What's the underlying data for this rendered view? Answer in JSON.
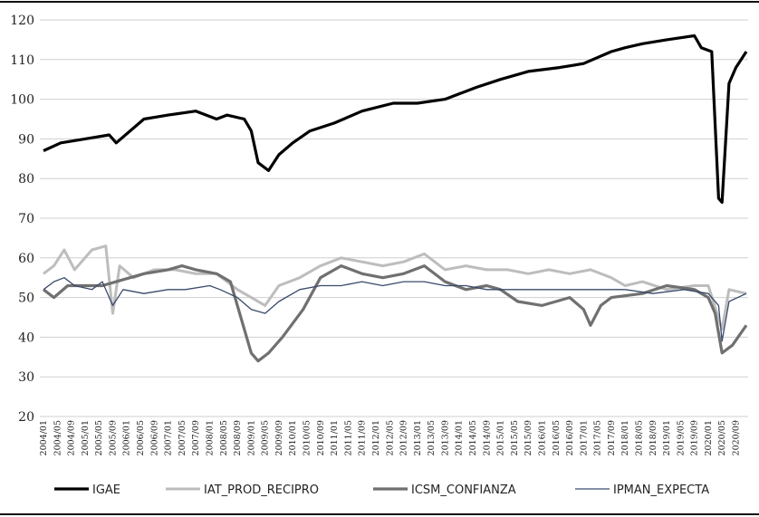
{
  "chart_data": {
    "type": "line",
    "title": "",
    "xlabel": "",
    "ylabel": "",
    "ylim": [
      20,
      120
    ],
    "yticks": [
      20,
      30,
      40,
      50,
      60,
      70,
      80,
      90,
      100,
      110,
      120
    ],
    "grid": "horizontal",
    "legend_position": "bottom",
    "x_start": "2004/01",
    "x_end": "2020/12",
    "x_tick_labels": [
      "2004/01",
      "2004/05",
      "2004/09",
      "2005/01",
      "2005/05",
      "2005/09",
      "2006/01",
      "2006/05",
      "2006/09",
      "2007/01",
      "2007/05",
      "2007/09",
      "2008/01",
      "2008/05",
      "2008/09",
      "2009/01",
      "2009/05",
      "2009/09",
      "2010/01",
      "2010/05",
      "2010/09",
      "2011/01",
      "2011/05",
      "2011/09",
      "2012/01",
      "2012/05",
      "2012/09",
      "2013/01",
      "2013/05",
      "2013/09",
      "2014/01",
      "2014/05",
      "2014/09",
      "2015/01",
      "2015/05",
      "2015/09",
      "2016/01",
      "2016/05",
      "2016/09",
      "2017/01",
      "2017/05",
      "2017/09",
      "2018/01",
      "2018/05",
      "2018/09",
      "2019/01",
      "2019/05",
      "2019/09",
      "2020/01",
      "2020/05",
      "2020/09"
    ],
    "series": [
      {
        "name": "IGAE",
        "color": "#000000",
        "points": [
          [
            "2004/01",
            87
          ],
          [
            "2004/06",
            89
          ],
          [
            "2005/01",
            90
          ],
          [
            "2005/08",
            91
          ],
          [
            "2005/10",
            89
          ],
          [
            "2006/06",
            95
          ],
          [
            "2007/01",
            96
          ],
          [
            "2007/09",
            97
          ],
          [
            "2008/03",
            95
          ],
          [
            "2008/06",
            96
          ],
          [
            "2008/11",
            95
          ],
          [
            "2009/01",
            92
          ],
          [
            "2009/03",
            84
          ],
          [
            "2009/06",
            82
          ],
          [
            "2009/09",
            86
          ],
          [
            "2010/01",
            89
          ],
          [
            "2010/06",
            92
          ],
          [
            "2011/01",
            94
          ],
          [
            "2011/09",
            97
          ],
          [
            "2012/06",
            99
          ],
          [
            "2013/01",
            99
          ],
          [
            "2013/09",
            100
          ],
          [
            "2014/06",
            103
          ],
          [
            "2015/01",
            105
          ],
          [
            "2015/09",
            107
          ],
          [
            "2016/06",
            108
          ],
          [
            "2017/01",
            109
          ],
          [
            "2017/09",
            112
          ],
          [
            "2018/01",
            113
          ],
          [
            "2018/06",
            114
          ],
          [
            "2019/01",
            115
          ],
          [
            "2019/09",
            116
          ],
          [
            "2019/11",
            113
          ],
          [
            "2020/02",
            112
          ],
          [
            "2020/04",
            75
          ],
          [
            "2020/05",
            74
          ],
          [
            "2020/07",
            104
          ],
          [
            "2020/09",
            108
          ],
          [
            "2020/12",
            112
          ]
        ]
      },
      {
        "name": "IAT_PROD_RECIPRO",
        "color": "#bdbdbd",
        "points": [
          [
            "2004/01",
            56
          ],
          [
            "2004/04",
            58
          ],
          [
            "2004/07",
            62
          ],
          [
            "2004/10",
            57
          ],
          [
            "2005/03",
            62
          ],
          [
            "2005/07",
            63
          ],
          [
            "2005/09",
            46
          ],
          [
            "2005/11",
            58
          ],
          [
            "2006/03",
            55
          ],
          [
            "2006/09",
            57
          ],
          [
            "2007/03",
            57
          ],
          [
            "2007/09",
            56
          ],
          [
            "2008/03",
            56
          ],
          [
            "2008/09",
            52
          ],
          [
            "2009/01",
            50
          ],
          [
            "2009/05",
            48
          ],
          [
            "2009/09",
            53
          ],
          [
            "2010/03",
            55
          ],
          [
            "2010/09",
            58
          ],
          [
            "2011/03",
            60
          ],
          [
            "2011/09",
            59
          ],
          [
            "2012/03",
            58
          ],
          [
            "2012/09",
            59
          ],
          [
            "2013/03",
            61
          ],
          [
            "2013/09",
            57
          ],
          [
            "2014/03",
            58
          ],
          [
            "2014/09",
            57
          ],
          [
            "2015/03",
            57
          ],
          [
            "2015/09",
            56
          ],
          [
            "2016/03",
            57
          ],
          [
            "2016/09",
            56
          ],
          [
            "2017/03",
            57
          ],
          [
            "2017/09",
            55
          ],
          [
            "2018/01",
            53
          ],
          [
            "2018/06",
            54
          ],
          [
            "2019/01",
            52
          ],
          [
            "2019/09",
            53
          ],
          [
            "2020/01",
            53
          ],
          [
            "2020/05",
            42
          ],
          [
            "2020/07",
            52
          ],
          [
            "2020/12",
            51
          ]
        ]
      },
      {
        "name": "ICSM_CONFIANZA",
        "color": "#707070",
        "points": [
          [
            "2004/01",
            52
          ],
          [
            "2004/04",
            50
          ],
          [
            "2004/08",
            53
          ],
          [
            "2005/06",
            53
          ],
          [
            "2006/06",
            56
          ],
          [
            "2007/01",
            57
          ],
          [
            "2007/05",
            58
          ],
          [
            "2007/09",
            57
          ],
          [
            "2008/03",
            56
          ],
          [
            "2008/07",
            54
          ],
          [
            "2008/10",
            45
          ],
          [
            "2009/01",
            36
          ],
          [
            "2009/03",
            34
          ],
          [
            "2009/06",
            36
          ],
          [
            "2009/10",
            40
          ],
          [
            "2010/04",
            47
          ],
          [
            "2010/09",
            55
          ],
          [
            "2011/03",
            58
          ],
          [
            "2011/09",
            56
          ],
          [
            "2012/03",
            55
          ],
          [
            "2012/09",
            56
          ],
          [
            "2013/03",
            58
          ],
          [
            "2013/09",
            54
          ],
          [
            "2014/03",
            52
          ],
          [
            "2014/09",
            53
          ],
          [
            "2015/01",
            52
          ],
          [
            "2015/06",
            49
          ],
          [
            "2016/01",
            48
          ],
          [
            "2016/09",
            50
          ],
          [
            "2017/01",
            47
          ],
          [
            "2017/03",
            43
          ],
          [
            "2017/06",
            48
          ],
          [
            "2017/09",
            50
          ],
          [
            "2018/06",
            51
          ],
          [
            "2019/01",
            53
          ],
          [
            "2019/09",
            52
          ],
          [
            "2020/01",
            50
          ],
          [
            "2020/03",
            46
          ],
          [
            "2020/05",
            36
          ],
          [
            "2020/08",
            38
          ],
          [
            "2020/12",
            43
          ]
        ]
      },
      {
        "name": "IPMAN_EXPECTA",
        "color": "#3a4a6b",
        "points": [
          [
            "2004/01",
            52
          ],
          [
            "2004/04",
            54
          ],
          [
            "2004/07",
            55
          ],
          [
            "2004/10",
            53
          ],
          [
            "2005/03",
            52
          ],
          [
            "2005/06",
            54
          ],
          [
            "2005/09",
            48
          ],
          [
            "2005/12",
            52
          ],
          [
            "2006/06",
            51
          ],
          [
            "2007/01",
            52
          ],
          [
            "2007/06",
            52
          ],
          [
            "2008/01",
            53
          ],
          [
            "2008/04",
            52
          ],
          [
            "2008/09",
            50
          ],
          [
            "2009/01",
            47
          ],
          [
            "2009/05",
            46
          ],
          [
            "2009/09",
            49
          ],
          [
            "2010/03",
            52
          ],
          [
            "2010/09",
            53
          ],
          [
            "2011/03",
            53
          ],
          [
            "2011/09",
            54
          ],
          [
            "2012/03",
            53
          ],
          [
            "2012/09",
            54
          ],
          [
            "2013/03",
            54
          ],
          [
            "2013/09",
            53
          ],
          [
            "2014/03",
            53
          ],
          [
            "2014/09",
            52
          ],
          [
            "2015/06",
            52
          ],
          [
            "2016/03",
            52
          ],
          [
            "2016/09",
            52
          ],
          [
            "2017/06",
            52
          ],
          [
            "2018/01",
            52
          ],
          [
            "2018/09",
            51
          ],
          [
            "2019/06",
            52
          ],
          [
            "2020/01",
            51
          ],
          [
            "2020/04",
            48
          ],
          [
            "2020/05",
            39
          ],
          [
            "2020/07",
            49
          ],
          [
            "2020/12",
            51
          ]
        ]
      }
    ]
  }
}
